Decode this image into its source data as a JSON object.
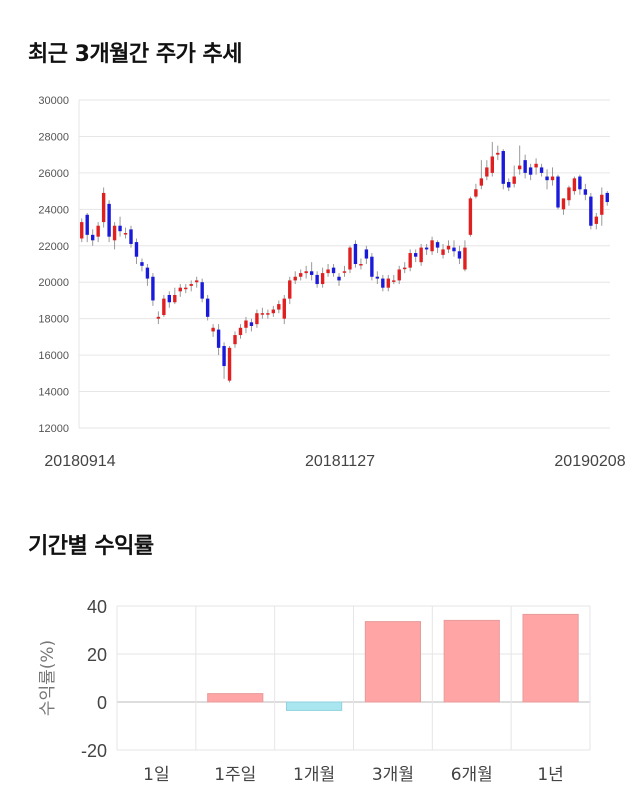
{
  "sections": {
    "price_title": "최근 3개월간 주가 추세",
    "return_title": "기간별 수익률"
  },
  "colors": {
    "up": "#e02020",
    "down": "#1a1adb",
    "positive_bar": "#ffa5a5",
    "negative_bar": "#a9e6f0"
  },
  "chart_data": [
    {
      "type": "candlestick",
      "title": "최근 3개월간 주가 추세",
      "ylim": [
        12000,
        30000
      ],
      "yticks": [
        12000,
        14000,
        16000,
        18000,
        20000,
        22000,
        24000,
        26000,
        28000,
        30000
      ],
      "xtick_labels": [
        "20180914",
        "20181127",
        "20190208"
      ],
      "grid": true,
      "up_color": "#e02020",
      "down_color": "#1a1adb",
      "series": [
        [
          22400,
          23300,
          22200,
          23500
        ],
        [
          23700,
          22600,
          22200,
          23800
        ],
        [
          22600,
          22300,
          22000,
          22900
        ],
        [
          22500,
          23100,
          22200,
          23300
        ],
        [
          23300,
          24900,
          23000,
          25200
        ],
        [
          24300,
          22500,
          22200,
          24500
        ],
        [
          22300,
          23100,
          21800,
          23300
        ],
        [
          23100,
          22800,
          22500,
          23600
        ],
        [
          22700,
          22700,
          22400,
          23000
        ],
        [
          22900,
          22100,
          21900,
          23100
        ],
        [
          22200,
          21400,
          21000,
          22400
        ],
        [
          21100,
          20900,
          20600,
          21300
        ],
        [
          20800,
          20200,
          19800,
          21000
        ],
        [
          20300,
          19000,
          18700,
          20500
        ],
        [
          18000,
          18100,
          17700,
          18400
        ],
        [
          18200,
          19100,
          18100,
          19300
        ],
        [
          19300,
          18900,
          18600,
          19500
        ],
        [
          18900,
          19300,
          18800,
          19700
        ],
        [
          19500,
          19700,
          19200,
          19900
        ],
        [
          19700,
          19700,
          19400,
          19900
        ],
        [
          19800,
          19900,
          19500,
          20100
        ],
        [
          20000,
          20100,
          19700,
          20300
        ],
        [
          20000,
          19100,
          18900,
          20200
        ],
        [
          19100,
          18100,
          17900,
          19300
        ],
        [
          17300,
          17500,
          17000,
          17700
        ],
        [
          17400,
          16400,
          16000,
          17700
        ],
        [
          16500,
          15400,
          14700,
          16700
        ],
        [
          14600,
          16400,
          14500,
          16500
        ],
        [
          16600,
          17100,
          16400,
          17300
        ],
        [
          17100,
          17500,
          16900,
          17700
        ],
        [
          17500,
          17900,
          17200,
          18100
        ],
        [
          17800,
          17600,
          17300,
          18000
        ],
        [
          17700,
          18300,
          17500,
          18500
        ],
        [
          18300,
          18300,
          18000,
          18600
        ],
        [
          18300,
          18300,
          18000,
          18500
        ],
        [
          18300,
          18500,
          18100,
          18700
        ],
        [
          18500,
          18800,
          18300,
          19000
        ],
        [
          18000,
          19100,
          17700,
          19300
        ],
        [
          19100,
          20100,
          18800,
          20300
        ],
        [
          20100,
          20300,
          19900,
          20600
        ],
        [
          20300,
          20500,
          20100,
          20700
        ],
        [
          20500,
          20600,
          20200,
          20900
        ],
        [
          20600,
          20400,
          20100,
          21100
        ],
        [
          20400,
          19900,
          19700,
          20600
        ],
        [
          19900,
          20500,
          19700,
          20800
        ],
        [
          20500,
          20700,
          20300,
          21000
        ],
        [
          20800,
          20500,
          20300,
          21000
        ],
        [
          20300,
          20100,
          19800,
          20500
        ],
        [
          20600,
          20600,
          20300,
          20900
        ],
        [
          20700,
          21900,
          20500,
          22000
        ],
        [
          22100,
          21000,
          20800,
          22300
        ],
        [
          21000,
          21000,
          20700,
          21300
        ],
        [
          21800,
          21300,
          21000,
          22000
        ],
        [
          21400,
          20300,
          20100,
          21600
        ],
        [
          20300,
          20200,
          19900,
          20600
        ],
        [
          20200,
          19700,
          19500,
          20400
        ],
        [
          19700,
          20200,
          19500,
          20400
        ],
        [
          20100,
          20100,
          19900,
          20400
        ],
        [
          20100,
          20700,
          19900,
          20900
        ],
        [
          20800,
          20800,
          20500,
          21100
        ],
        [
          20800,
          21600,
          20600,
          21800
        ],
        [
          21600,
          21400,
          21100,
          21800
        ],
        [
          21100,
          21900,
          20900,
          22100
        ],
        [
          21900,
          21800,
          21500,
          22100
        ],
        [
          21700,
          22300,
          21500,
          22500
        ],
        [
          22200,
          21900,
          21600,
          22300
        ],
        [
          21500,
          21800,
          21300,
          22100
        ],
        [
          21800,
          22000,
          21600,
          22300
        ],
        [
          21900,
          21700,
          21400,
          22300
        ],
        [
          21700,
          21300,
          21000,
          22000
        ],
        [
          20700,
          21900,
          20600,
          22300
        ],
        [
          22600,
          24600,
          22500,
          24700
        ],
        [
          24700,
          25100,
          24600,
          25400
        ],
        [
          25300,
          25700,
          25100,
          26700
        ],
        [
          25800,
          26300,
          25600,
          26700
        ],
        [
          26000,
          26900,
          25800,
          27700
        ],
        [
          27000,
          27100,
          26700,
          27500
        ],
        [
          27200,
          25400,
          25100,
          27300
        ],
        [
          25500,
          25200,
          25000,
          25700
        ],
        [
          25400,
          25800,
          25200,
          26400
        ],
        [
          26200,
          26400,
          25900,
          27500
        ],
        [
          26700,
          26000,
          25700,
          27000
        ],
        [
          26300,
          25900,
          25600,
          26500
        ],
        [
          26300,
          26500,
          25900,
          26800
        ],
        [
          26300,
          26000,
          25800,
          26500
        ],
        [
          25800,
          25600,
          25100,
          26200
        ],
        [
          25600,
          25800,
          25300,
          26300
        ],
        [
          25800,
          24100,
          24000,
          25900
        ],
        [
          24000,
          24600,
          23700,
          24600
        ],
        [
          24500,
          25200,
          24200,
          25300
        ],
        [
          25000,
          25700,
          24800,
          25800
        ],
        [
          25800,
          25100,
          24800,
          25900
        ],
        [
          25100,
          24800,
          24500,
          25400
        ],
        [
          24700,
          23100,
          22900,
          24900
        ],
        [
          23200,
          23600,
          22900,
          23800
        ],
        [
          23700,
          24800,
          23100,
          25200
        ],
        [
          24900,
          24400,
          24200,
          25000
        ]
      ]
    },
    {
      "type": "bar",
      "title": "기간별 수익률",
      "ylabel": "수익률(%)",
      "ylim": [
        -20,
        40
      ],
      "yticks": [
        -20,
        0,
        20,
        40
      ],
      "categories": [
        "1일",
        "1주일",
        "1개월",
        "3개월",
        "6개월",
        "1년"
      ],
      "values": [
        0,
        3.5,
        -3.5,
        33.5,
        34,
        36.5
      ],
      "grid": true
    }
  ]
}
